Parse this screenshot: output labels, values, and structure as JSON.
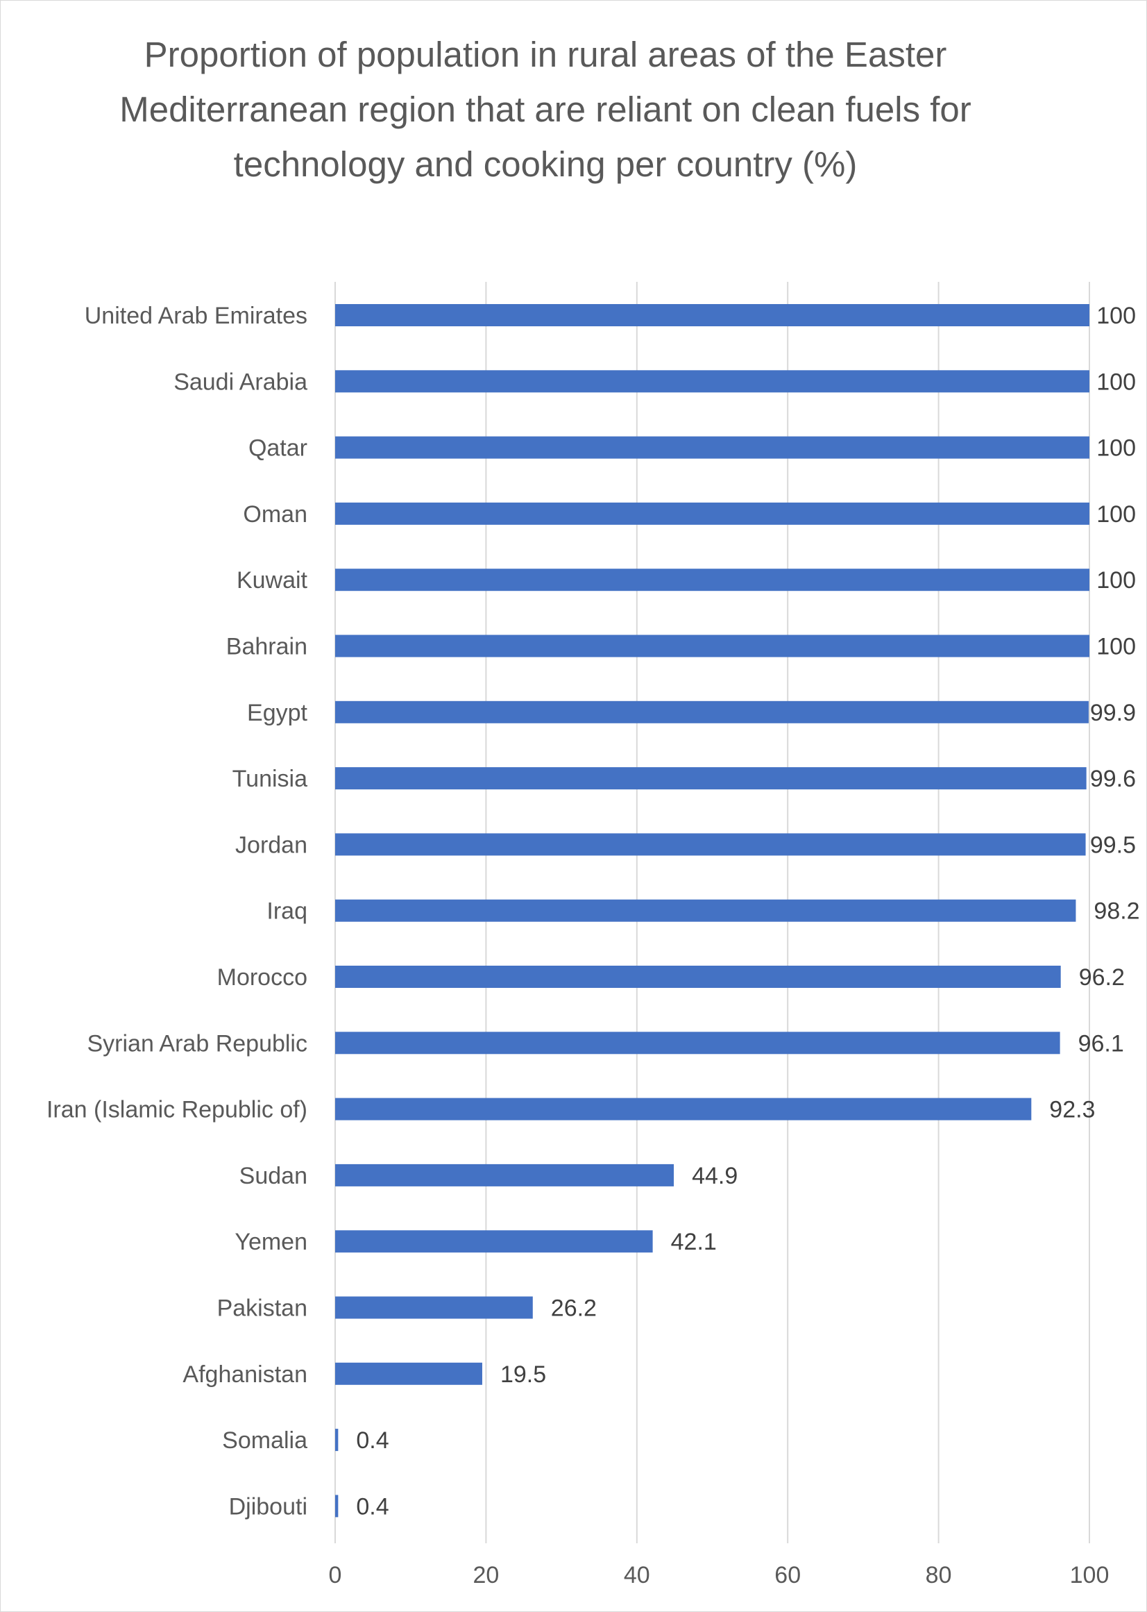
{
  "chart_data": {
    "type": "bar",
    "orientation": "horizontal",
    "title": "Proportion of population in rural areas of the Easter Mediterranean region that are reliant on clean fuels for technology and cooking per country (%)",
    "xlabel": "",
    "ylabel": "",
    "xlim": [
      0,
      100
    ],
    "x_ticks": [
      "0",
      "20",
      "40",
      "60",
      "80",
      "100"
    ],
    "grid": true,
    "legend": "none",
    "bar_color": "#4472c4",
    "categories": [
      "United Arab Emirates",
      "Saudi Arabia",
      "Qatar",
      "Oman",
      "Kuwait",
      "Bahrain",
      "Egypt",
      "Tunisia",
      "Jordan",
      "Iraq",
      "Morocco",
      "Syrian Arab Republic",
      "Iran (Islamic Republic of)",
      "Sudan",
      "Yemen",
      "Pakistan",
      "Afghanistan",
      "Somalia",
      "Djibouti"
    ],
    "values": [
      100,
      100,
      100,
      100,
      100,
      100,
      99.9,
      99.6,
      99.5,
      98.2,
      96.2,
      96.1,
      92.3,
      44.9,
      42.1,
      26.2,
      19.5,
      0.4,
      0.4
    ],
    "data_labels": [
      "100",
      "100",
      "100",
      "100",
      "100",
      "100",
      "99.9",
      "99.6",
      "99.5",
      "98.2",
      "96.2",
      "96.1",
      "92.3",
      "44.9",
      "42.1",
      "26.2",
      "19.5",
      "0.4",
      "0.4"
    ]
  }
}
